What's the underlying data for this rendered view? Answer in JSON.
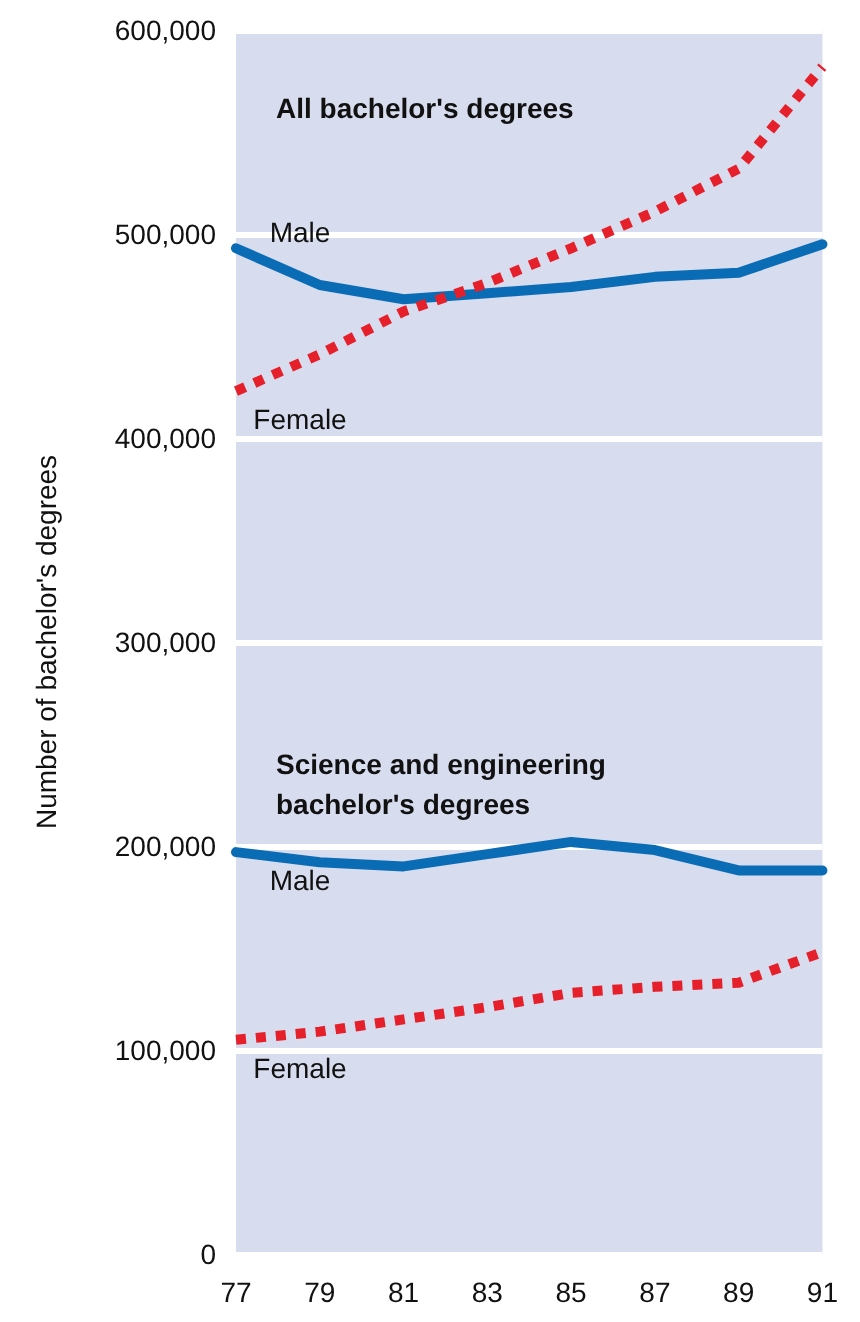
{
  "chart_data": {
    "type": "line",
    "ylabel": "Number of bachelor's degrees",
    "categories": [
      "77",
      "79",
      "81",
      "83",
      "85",
      "87",
      "89",
      "91"
    ],
    "series": [
      {
        "name": "Male",
        "color": "#0a6cb4",
        "line_style": "solid",
        "values": [
          493000,
          475000,
          468000,
          471000,
          474000,
          479000,
          481000,
          495000
        ]
      },
      {
        "name": "Female",
        "color": "#e5202a",
        "line_style": "dotted",
        "values": [
          423000,
          441000,
          462000,
          476000,
          493000,
          511000,
          532000,
          582000
        ]
      },
      {
        "name": "Male",
        "color": "#0a6cb4",
        "line_style": "solid",
        "values": [
          197000,
          192000,
          190000,
          196000,
          202000,
          198000,
          188000,
          188000
        ]
      },
      {
        "name": "Female",
        "color": "#e5202a",
        "line_style": "dotted",
        "values": [
          105000,
          109000,
          115000,
          121000,
          128000,
          131000,
          133000,
          148000
        ]
      }
    ],
    "ylim": [
      0,
      600000
    ],
    "yticks": [
      0,
      {
        "value": 100000,
        "label": "100,000"
      },
      {
        "value": 200000,
        "label": "200,000"
      },
      {
        "value": 300000,
        "label": "300,000"
      },
      {
        "value": 400000,
        "label": "400,000"
      },
      {
        "value": 500000,
        "label": "500,000"
      },
      {
        "value": 600000,
        "label": "600,000"
      }
    ],
    "grid": "y",
    "marker": "none",
    "legend": false,
    "annotations": [
      "All bachelor's degrees",
      "Science and engineering bachelor's degrees"
    ]
  }
}
